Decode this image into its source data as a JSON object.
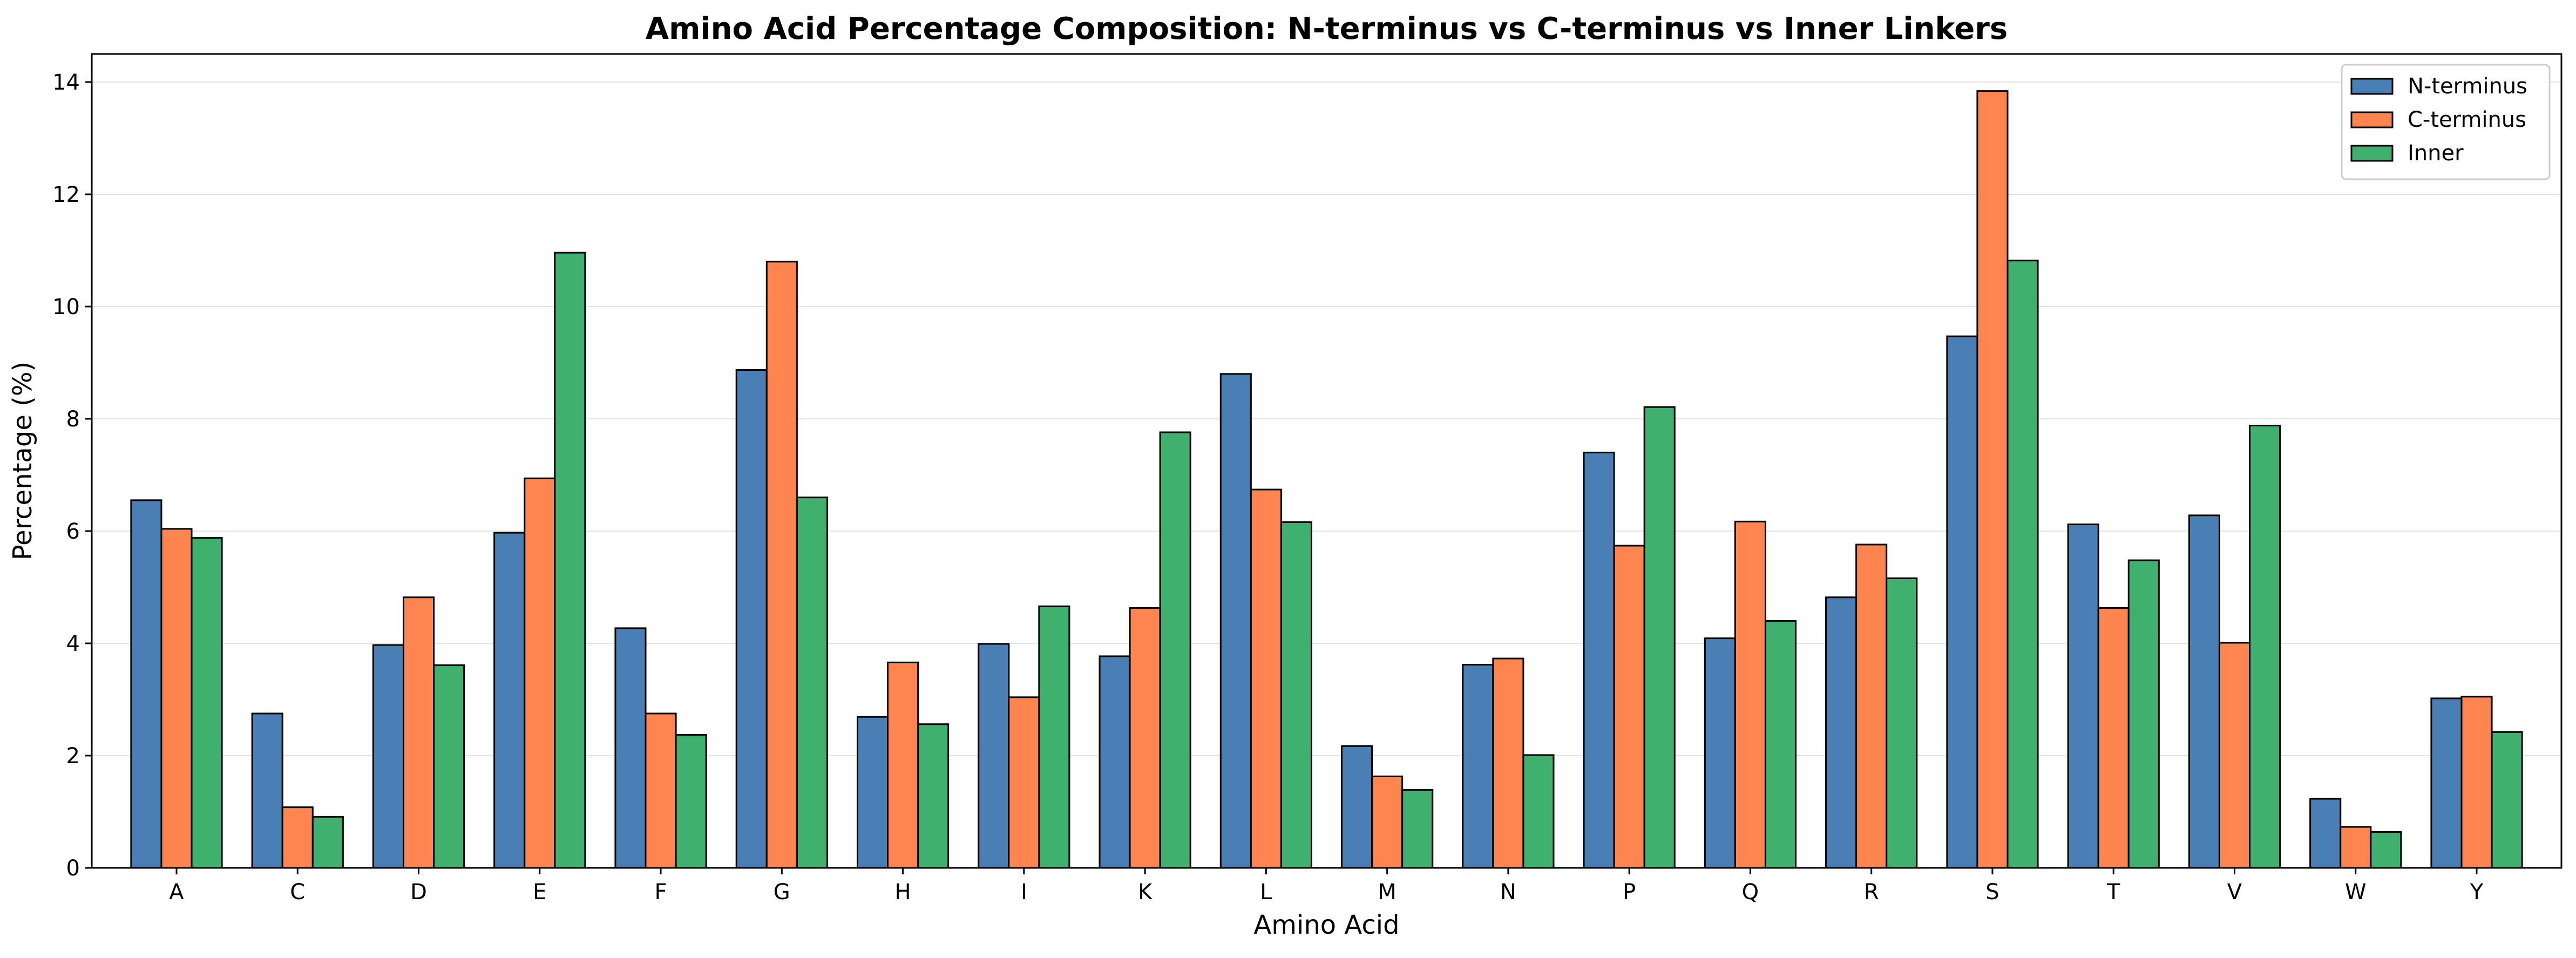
{
  "chart_data": {
    "type": "bar",
    "title": "Amino Acid Percentage Composition: N-terminus vs C-terminus vs Inner Linkers",
    "xlabel": "Amino Acid",
    "ylabel": "Percentage (%)",
    "ylim": [
      0,
      14.5
    ],
    "yticks": [
      0,
      2,
      4,
      6,
      8,
      10,
      12,
      14
    ],
    "ytick_labels": [
      "0",
      "2",
      "4",
      "6",
      "8",
      "10",
      "12",
      "14"
    ],
    "grid": "horizontal",
    "legend_position": "top-right",
    "categories": [
      "A",
      "C",
      "D",
      "E",
      "F",
      "G",
      "H",
      "I",
      "K",
      "L",
      "M",
      "N",
      "P",
      "Q",
      "R",
      "S",
      "T",
      "V",
      "W",
      "Y"
    ],
    "series": [
      {
        "name": "N-terminus",
        "color": "#4a7fb5",
        "values": [
          6.55,
          2.75,
          3.97,
          5.97,
          4.27,
          8.87,
          2.69,
          3.99,
          3.77,
          8.8,
          2.17,
          3.62,
          7.4,
          4.09,
          4.82,
          9.47,
          6.12,
          6.28,
          1.23,
          3.02
        ]
      },
      {
        "name": "C-terminus",
        "color": "#ff8550",
        "values": [
          6.04,
          1.08,
          4.82,
          6.94,
          2.75,
          10.8,
          3.66,
          3.04,
          4.63,
          6.74,
          1.63,
          3.73,
          5.74,
          6.17,
          5.76,
          13.84,
          4.63,
          4.01,
          0.73,
          3.05
        ]
      },
      {
        "name": "Inner",
        "color": "#3fb06e",
        "values": [
          5.88,
          0.91,
          3.61,
          10.96,
          2.37,
          6.6,
          2.56,
          4.66,
          7.76,
          6.16,
          1.39,
          2.01,
          8.21,
          4.4,
          5.16,
          10.82,
          5.48,
          7.88,
          0.64,
          2.42
        ]
      }
    ]
  }
}
